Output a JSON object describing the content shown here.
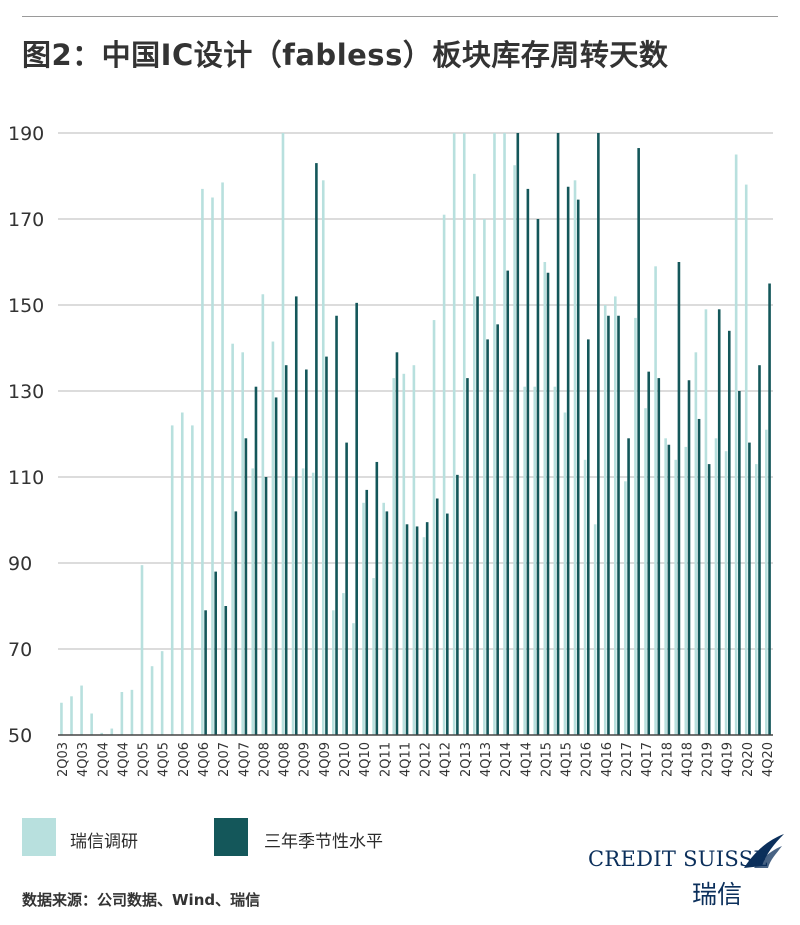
{
  "title": "图2：中国IC设计（fabless）板块库存周转天数",
  "source_note": "数据来源：公司数据、Wind、瑞信",
  "logo": {
    "name": "CREDIT SUISSE",
    "sub": "瑞信"
  },
  "colors": {
    "survey": "#b8e0de",
    "seasonal": "#14575a",
    "grid": "#c6c6c6",
    "axis": "#444444"
  },
  "chart_data": {
    "type": "bar",
    "title": "图2：中国IC设计（fabless）板块库存周转天数",
    "xlabel": "",
    "ylabel": "",
    "ylim": [
      50,
      190
    ],
    "yticks": [
      50,
      70,
      90,
      110,
      130,
      150,
      170,
      190
    ],
    "grid": true,
    "legend_position": "bottom",
    "quarters": [
      "2Q03",
      "3Q03",
      "4Q03",
      "1Q04",
      "2Q04",
      "3Q04",
      "4Q04",
      "1Q05",
      "2Q05",
      "3Q05",
      "4Q05",
      "1Q06",
      "2Q06",
      "3Q06",
      "4Q06",
      "1Q07",
      "2Q07",
      "3Q07",
      "4Q07",
      "1Q08",
      "2Q08",
      "3Q08",
      "4Q08",
      "1Q09",
      "2Q09",
      "3Q09",
      "4Q09",
      "1Q10",
      "2Q10",
      "3Q10",
      "4Q10",
      "1Q11",
      "2Q11",
      "3Q11",
      "4Q11",
      "1Q12",
      "2Q12",
      "3Q12",
      "4Q12",
      "1Q13",
      "2Q13",
      "3Q13",
      "4Q13",
      "1Q14",
      "2Q14",
      "3Q14",
      "4Q14",
      "1Q15",
      "2Q15",
      "3Q15",
      "4Q15",
      "1Q16",
      "2Q16",
      "3Q16",
      "4Q16",
      "1Q17",
      "2Q17",
      "3Q17",
      "4Q17",
      "1Q18",
      "2Q18",
      "3Q18",
      "4Q18",
      "1Q19",
      "2Q19",
      "3Q19",
      "4Q19",
      "1Q20",
      "2Q20",
      "3Q20",
      "4Q20"
    ],
    "tick_labels": [
      "2Q03",
      "4Q03",
      "2Q04",
      "4Q04",
      "2Q05",
      "4Q05",
      "2Q06",
      "4Q06",
      "2Q07",
      "4Q07",
      "2Q08",
      "4Q08",
      "2Q09",
      "4Q09",
      "2Q10",
      "4Q10",
      "2Q11",
      "4Q11",
      "2Q12",
      "4Q12",
      "2Q13",
      "4Q13",
      "2Q14",
      "4Q14",
      "2Q15",
      "4Q15",
      "2Q16",
      "4Q16",
      "2Q17",
      "4Q17",
      "2Q18",
      "4Q18",
      "2Q19",
      "4Q19",
      "2Q20",
      "4Q20"
    ],
    "series": [
      {
        "name": "瑞信调研",
        "values": [
          57.5,
          59,
          61.5,
          55,
          50.5,
          51.5,
          60,
          60.5,
          89.5,
          66,
          69.5,
          122,
          125,
          122,
          177,
          175,
          178.5,
          141,
          139,
          112,
          152.5,
          141.5,
          190,
          110,
          112,
          111,
          179,
          79,
          83,
          76,
          104,
          86.5,
          104,
          133,
          134,
          136,
          96,
          146.5,
          171,
          190,
          190,
          180.5,
          170,
          190,
          190,
          182.5,
          131,
          131,
          160,
          131,
          125,
          179,
          114,
          99,
          150,
          152,
          109,
          147,
          126,
          159,
          119,
          114,
          117,
          139,
          149,
          119,
          116,
          185,
          178,
          113,
          121
        ]
      },
      {
        "name": "三年季节性水平",
        "values": [
          null,
          null,
          null,
          null,
          null,
          null,
          null,
          null,
          null,
          null,
          null,
          null,
          null,
          null,
          79,
          88,
          80,
          102,
          119,
          131,
          110,
          128.5,
          136,
          152,
          135,
          183,
          138,
          147.5,
          118,
          150.5,
          107,
          113.5,
          102,
          139,
          99,
          98.5,
          99.5,
          105,
          101.5,
          110.5,
          133,
          152,
          142,
          145.5,
          158,
          190,
          177,
          170,
          157.5,
          190,
          177.5,
          174.5,
          142,
          190,
          147.5,
          147.5,
          119,
          186.5,
          134.5,
          133,
          117.5,
          160,
          132.5,
          123.5,
          113,
          149,
          144,
          130,
          118,
          136,
          155
        ]
      }
    ]
  }
}
